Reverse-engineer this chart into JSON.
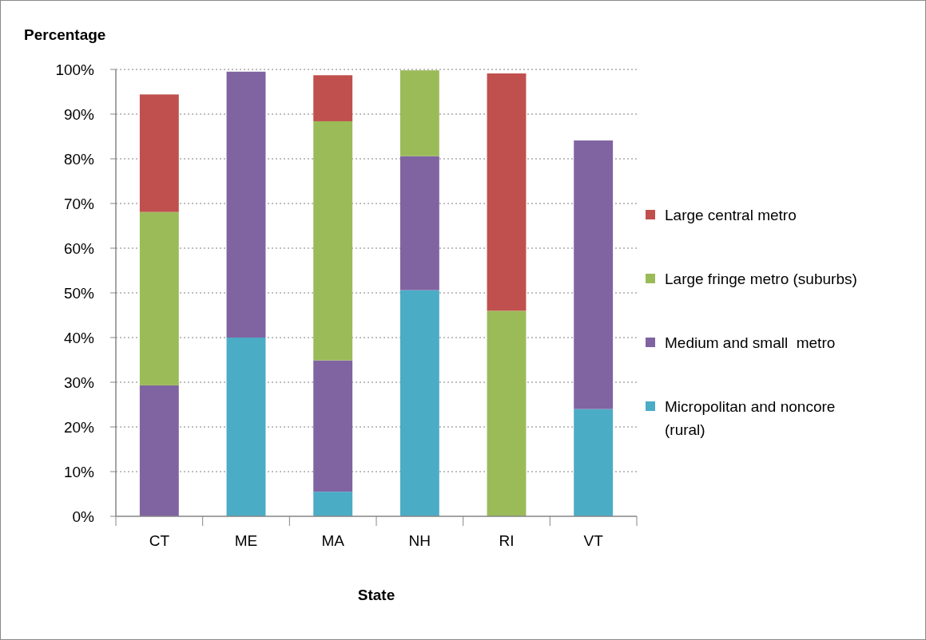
{
  "chart_data": {
    "type": "bar",
    "stacked": true,
    "ylabel": "Percentage",
    "xlabel": "State",
    "categories": [
      "CT",
      "ME",
      "MA",
      "NH",
      "RI",
      "VT"
    ],
    "series": [
      {
        "name": "Micropolitan and noncore (rural)",
        "color": "#4bacc6",
        "values": [
          0,
          40.0,
          5.5,
          50.6,
          0,
          24.0
        ]
      },
      {
        "name": "Medium and small  metro",
        "color": "#8064a2",
        "values": [
          29.3,
          59.5,
          29.4,
          30.0,
          0,
          60.1
        ]
      },
      {
        "name": "Large fringe metro (suburbs)",
        "color": "#9bbb59",
        "values": [
          38.8,
          0,
          53.5,
          19.2,
          46.0,
          0
        ]
      },
      {
        "name": "Large central metro",
        "color": "#c0504d",
        "values": [
          26.3,
          0,
          10.3,
          0,
          53.1,
          0
        ]
      }
    ],
    "ylim": [
      0,
      100
    ],
    "yticks": [
      {
        "value": 0,
        "label": "0%"
      },
      {
        "value": 10,
        "label": "10%"
      },
      {
        "value": 20,
        "label": "20%"
      },
      {
        "value": 30,
        "label": "30%"
      },
      {
        "value": 40,
        "label": "40%"
      },
      {
        "value": 50,
        "label": "50%"
      },
      {
        "value": 60,
        "label": "60%"
      },
      {
        "value": 70,
        "label": "70%"
      },
      {
        "value": 80,
        "label": "80%"
      },
      {
        "value": 90,
        "label": "90%"
      },
      {
        "value": 100,
        "label": "100%"
      }
    ],
    "grid": "y",
    "legend": "right"
  }
}
